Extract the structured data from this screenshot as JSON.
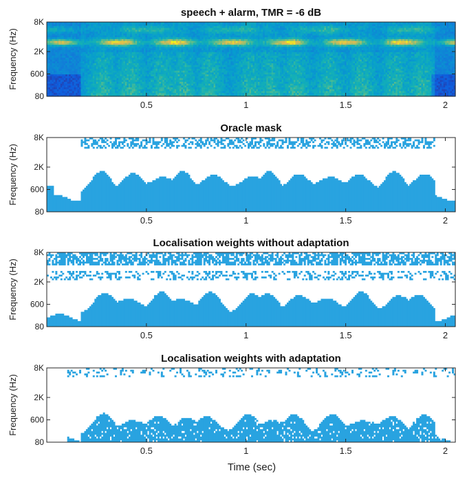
{
  "figure": {
    "xlabel": "Time (sec)"
  },
  "chart_data": [
    {
      "type": "heatmap",
      "title": "speech + alarm, TMR = -6 dB",
      "ylabel": "Frequency (Hz)",
      "xlabel": "",
      "xlim": [
        0,
        2.05
      ],
      "x_ticks": [
        0.5,
        1,
        1.5,
        2
      ],
      "x_tick_labels": [
        "0.5",
        "1",
        "1.5",
        "2"
      ],
      "y_scale": "erb",
      "y_ticks": [
        80,
        600,
        2000,
        8000
      ],
      "y_tick_labels": [
        "80",
        "600",
        "2K",
        "8K"
      ],
      "colormap": "parula",
      "content": "spectrogram"
    },
    {
      "type": "heatmap",
      "title": "Oracle mask",
      "ylabel": "Frequency (Hz)",
      "xlabel": "",
      "xlim": [
        0,
        2.05
      ],
      "x_ticks": [
        0.5,
        1,
        1.5,
        2
      ],
      "x_tick_labels": [
        "0.5",
        "1",
        "1.5",
        "2"
      ],
      "y_scale": "erb",
      "y_ticks": [
        80,
        600,
        2000,
        8000
      ],
      "y_tick_labels": [
        "80",
        "600",
        "2K",
        "8K"
      ],
      "colormap": "binary",
      "mask_color": "#29a3e0",
      "content": "oracle"
    },
    {
      "type": "heatmap",
      "title": "Localisation weights without adaptation",
      "ylabel": "Frequency (Hz)",
      "xlabel": "",
      "xlim": [
        0,
        2.05
      ],
      "x_ticks": [
        0.5,
        1,
        1.5,
        2
      ],
      "x_tick_labels": [
        "0.5",
        "1",
        "1.5",
        "2"
      ],
      "y_scale": "erb",
      "y_ticks": [
        80,
        600,
        2000,
        8000
      ],
      "y_tick_labels": [
        "80",
        "600",
        "2K",
        "8K"
      ],
      "colormap": "binary",
      "mask_color": "#29a3e0",
      "content": "noadapt"
    },
    {
      "type": "heatmap",
      "title": "Localisation weights with adaptation",
      "ylabel": "Frequency (Hz)",
      "xlabel": "",
      "xlim": [
        0,
        2.05
      ],
      "x_ticks": [
        0.5,
        1,
        1.5,
        2
      ],
      "x_tick_labels": [
        "0.5",
        "1",
        "1.5",
        "2"
      ],
      "y_scale": "erb",
      "y_ticks": [
        80,
        600,
        2000,
        8000
      ],
      "y_tick_labels": [
        "80",
        "600",
        "2K",
        "8K"
      ],
      "colormap": "binary",
      "mask_color": "#29a3e0",
      "content": "adapt"
    }
  ]
}
